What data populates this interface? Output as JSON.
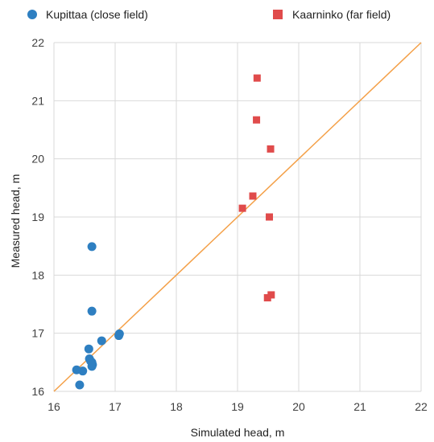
{
  "chart_data": {
    "type": "scatter",
    "xlabel": "Simulated head, m",
    "ylabel": "Measured head, m",
    "xlim": [
      16,
      22
    ],
    "ylim": [
      16,
      22
    ],
    "xticks": [
      16,
      17,
      18,
      19,
      20,
      21,
      22
    ],
    "yticks": [
      16,
      17,
      18,
      19,
      20,
      21,
      22
    ],
    "grid": true,
    "legend_position": "top",
    "reference_line": {
      "from": [
        16,
        16
      ],
      "to": [
        22,
        22
      ],
      "color": "#f4a048"
    },
    "series": [
      {
        "name": "Kupittaa (close field)",
        "marker": "circle",
        "color": "#2e7fc1",
        "points": [
          [
            16.62,
            18.49
          ],
          [
            16.62,
            17.38
          ],
          [
            16.78,
            16.87
          ],
          [
            17.07,
            16.99
          ],
          [
            17.06,
            16.96
          ],
          [
            16.57,
            16.73
          ],
          [
            16.58,
            16.56
          ],
          [
            16.6,
            16.52
          ],
          [
            16.62,
            16.5
          ],
          [
            16.63,
            16.46
          ],
          [
            16.62,
            16.43
          ],
          [
            16.47,
            16.35
          ],
          [
            16.37,
            16.37
          ],
          [
            16.42,
            16.11
          ]
        ]
      },
      {
        "name": "Kaarninko (far field)",
        "marker": "square",
        "color": "#e04b4b",
        "points": [
          [
            19.32,
            21.39
          ],
          [
            19.31,
            20.67
          ],
          [
            19.54,
            20.17
          ],
          [
            19.25,
            19.36
          ],
          [
            19.08,
            19.15
          ],
          [
            19.52,
            19.0
          ],
          [
            19.55,
            17.66
          ],
          [
            19.49,
            17.61
          ]
        ]
      }
    ]
  }
}
